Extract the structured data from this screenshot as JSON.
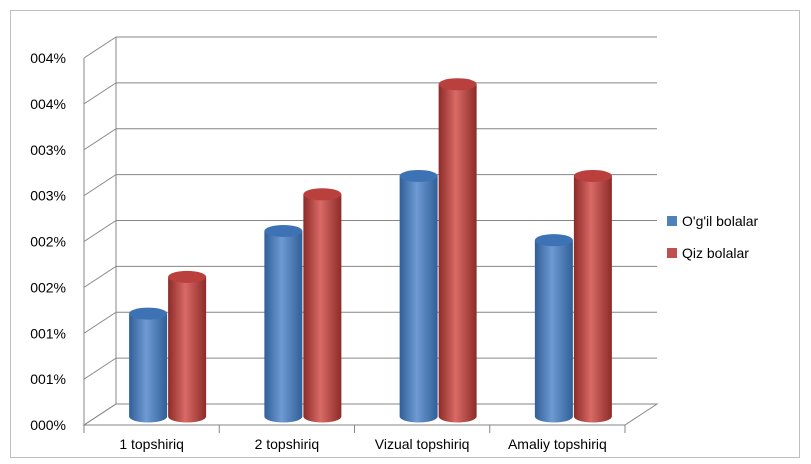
{
  "chart_data": {
    "type": "bar",
    "title": "",
    "xlabel": "",
    "ylabel": "",
    "categories": [
      "1 topshiriq",
      "2 topshiriq",
      "Vizual topshiriq",
      "Amaliy topshiriq"
    ],
    "series": [
      {
        "name": "O'g'il bolalar",
        "values": [
          1.1,
          2.0,
          2.6,
          1.9
        ],
        "color": "#4f81bd"
      },
      {
        "name": "Qiz bolalar",
        "values": [
          1.5,
          2.4,
          3.6,
          2.6
        ],
        "color": "#c0504d"
      }
    ],
    "y_tick_labels": [
      "000%",
      "001%",
      "001%",
      "002%",
      "002%",
      "003%",
      "003%",
      "004%",
      "004%"
    ],
    "ylim": [
      0,
      4
    ],
    "grid": true,
    "legend_position": "right"
  }
}
